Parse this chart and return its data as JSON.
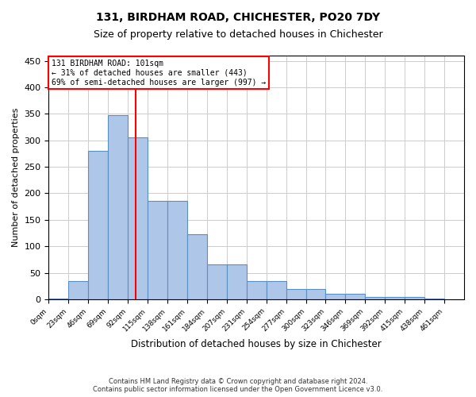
{
  "title1": "131, BIRDHAM ROAD, CHICHESTER, PO20 7DY",
  "title2": "Size of property relative to detached houses in Chichester",
  "xlabel": "Distribution of detached houses by size in Chichester",
  "ylabel": "Number of detached properties",
  "bar_labels": [
    "0sqm",
    "23sqm",
    "46sqm",
    "69sqm",
    "92sqm",
    "115sqm",
    "138sqm",
    "161sqm",
    "184sqm",
    "207sqm",
    "231sqm",
    "254sqm",
    "277sqm",
    "300sqm",
    "323sqm",
    "346sqm",
    "369sqm",
    "392sqm",
    "415sqm",
    "438sqm",
    "461sqm"
  ],
  "bar_values": [
    2,
    35,
    280,
    347,
    305,
    185,
    185,
    122,
    65,
    65,
    35,
    35,
    20,
    20,
    10,
    10,
    5,
    5,
    5,
    2,
    0
  ],
  "bar_color": "#aec6e8",
  "bar_edge_color": "#5a8fc2",
  "vline_x": 101,
  "annotation_text1": "131 BIRDHAM ROAD: 101sqm",
  "annotation_text2": "← 31% of detached houses are smaller (443)",
  "annotation_text3": "69% of semi-detached houses are larger (997) →",
  "annotation_box_color": "white",
  "annotation_box_edge": "red",
  "vline_color": "red",
  "grid_color": "#cccccc",
  "background_color": "white",
  "footer1": "Contains HM Land Registry data © Crown copyright and database right 2024.",
  "footer2": "Contains public sector information licensed under the Open Government Licence v3.0.",
  "ylim": [
    0,
    460
  ],
  "bin_width": 23
}
